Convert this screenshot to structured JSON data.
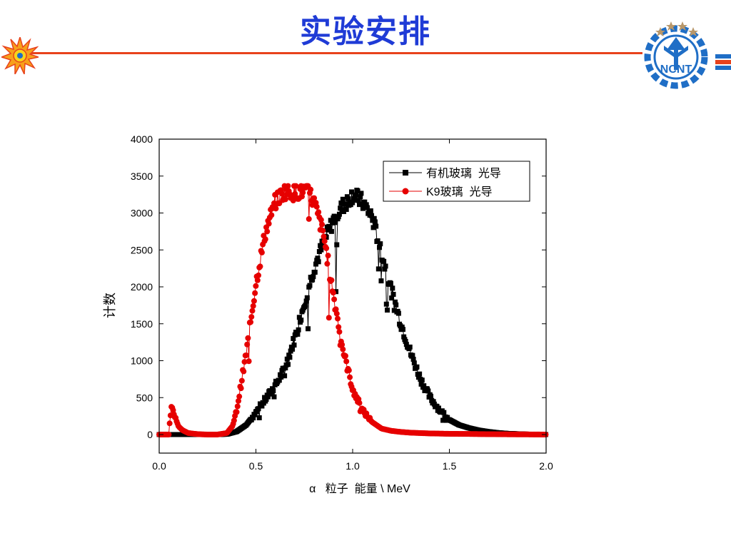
{
  "slide": {
    "title": "实验安排",
    "logo_text": "NCNT",
    "colors": {
      "title": "#1f3bd6",
      "rule": "#e8421c",
      "logo_blue": "#1f6ec6"
    }
  },
  "chart_data": {
    "type": "scatter",
    "xlabel": "α   粒子  能量 \\ MeV",
    "ylabel": "计数",
    "xlim": [
      0.0,
      2.0
    ],
    "ylim": [
      -250,
      4000
    ],
    "xticks": [
      "0.0",
      "0.5",
      "1.0",
      "1.5",
      "2.0"
    ],
    "xtick_values": [
      0.0,
      0.5,
      1.0,
      1.5,
      2.0
    ],
    "yticks": [
      "0",
      "500",
      "1000",
      "1500",
      "2000",
      "2500",
      "3000",
      "3500",
      "4000"
    ],
    "ytick_values": [
      0,
      500,
      1000,
      1500,
      2000,
      2500,
      3000,
      3500,
      4000
    ],
    "grid": false,
    "legend_position": "top-right",
    "series": [
      {
        "name": "有机玻璃  光导",
        "color": "#000000",
        "marker": "square",
        "x": [
          0.0,
          0.05,
          0.1,
          0.15,
          0.2,
          0.25,
          0.3,
          0.35,
          0.4,
          0.45,
          0.5,
          0.55,
          0.6,
          0.65,
          0.7,
          0.75,
          0.8,
          0.85,
          0.9,
          0.95,
          1.0,
          1.05,
          1.1,
          1.15,
          1.2,
          1.25,
          1.3,
          1.35,
          1.4,
          1.45,
          1.5,
          1.55,
          1.6,
          1.65,
          1.7,
          1.75,
          1.8,
          1.85,
          1.9,
          1.95,
          2.0
        ],
        "y": [
          0,
          0,
          0,
          0,
          0,
          0,
          0,
          5,
          40,
          130,
          300,
          480,
          660,
          900,
          1300,
          1780,
          2250,
          2600,
          2900,
          3100,
          3250,
          3150,
          2950,
          2450,
          1950,
          1500,
          1100,
          760,
          500,
          330,
          200,
          130,
          90,
          60,
          40,
          25,
          15,
          10,
          5,
          3,
          0
        ]
      },
      {
        "name": "K9玻璃  光导",
        "color": "#e60000",
        "marker": "circle",
        "x": [
          0.0,
          0.05,
          0.06,
          0.08,
          0.1,
          0.12,
          0.15,
          0.2,
          0.25,
          0.3,
          0.35,
          0.38,
          0.4,
          0.45,
          0.5,
          0.55,
          0.6,
          0.65,
          0.7,
          0.75,
          0.78,
          0.8,
          0.85,
          0.9,
          0.95,
          1.0,
          1.05,
          1.1,
          1.15,
          1.2,
          1.25,
          1.3,
          1.4,
          1.5,
          1.6,
          1.7,
          1.8,
          1.9,
          2.0
        ],
        "y": [
          0,
          0,
          380,
          250,
          110,
          60,
          20,
          5,
          0,
          0,
          20,
          120,
          320,
          1100,
          2050,
          2750,
          3150,
          3300,
          3280,
          3300,
          3250,
          3150,
          2700,
          1900,
          1150,
          620,
          330,
          170,
          80,
          50,
          35,
          25,
          15,
          10,
          8,
          5,
          3,
          2,
          0
        ]
      }
    ]
  }
}
